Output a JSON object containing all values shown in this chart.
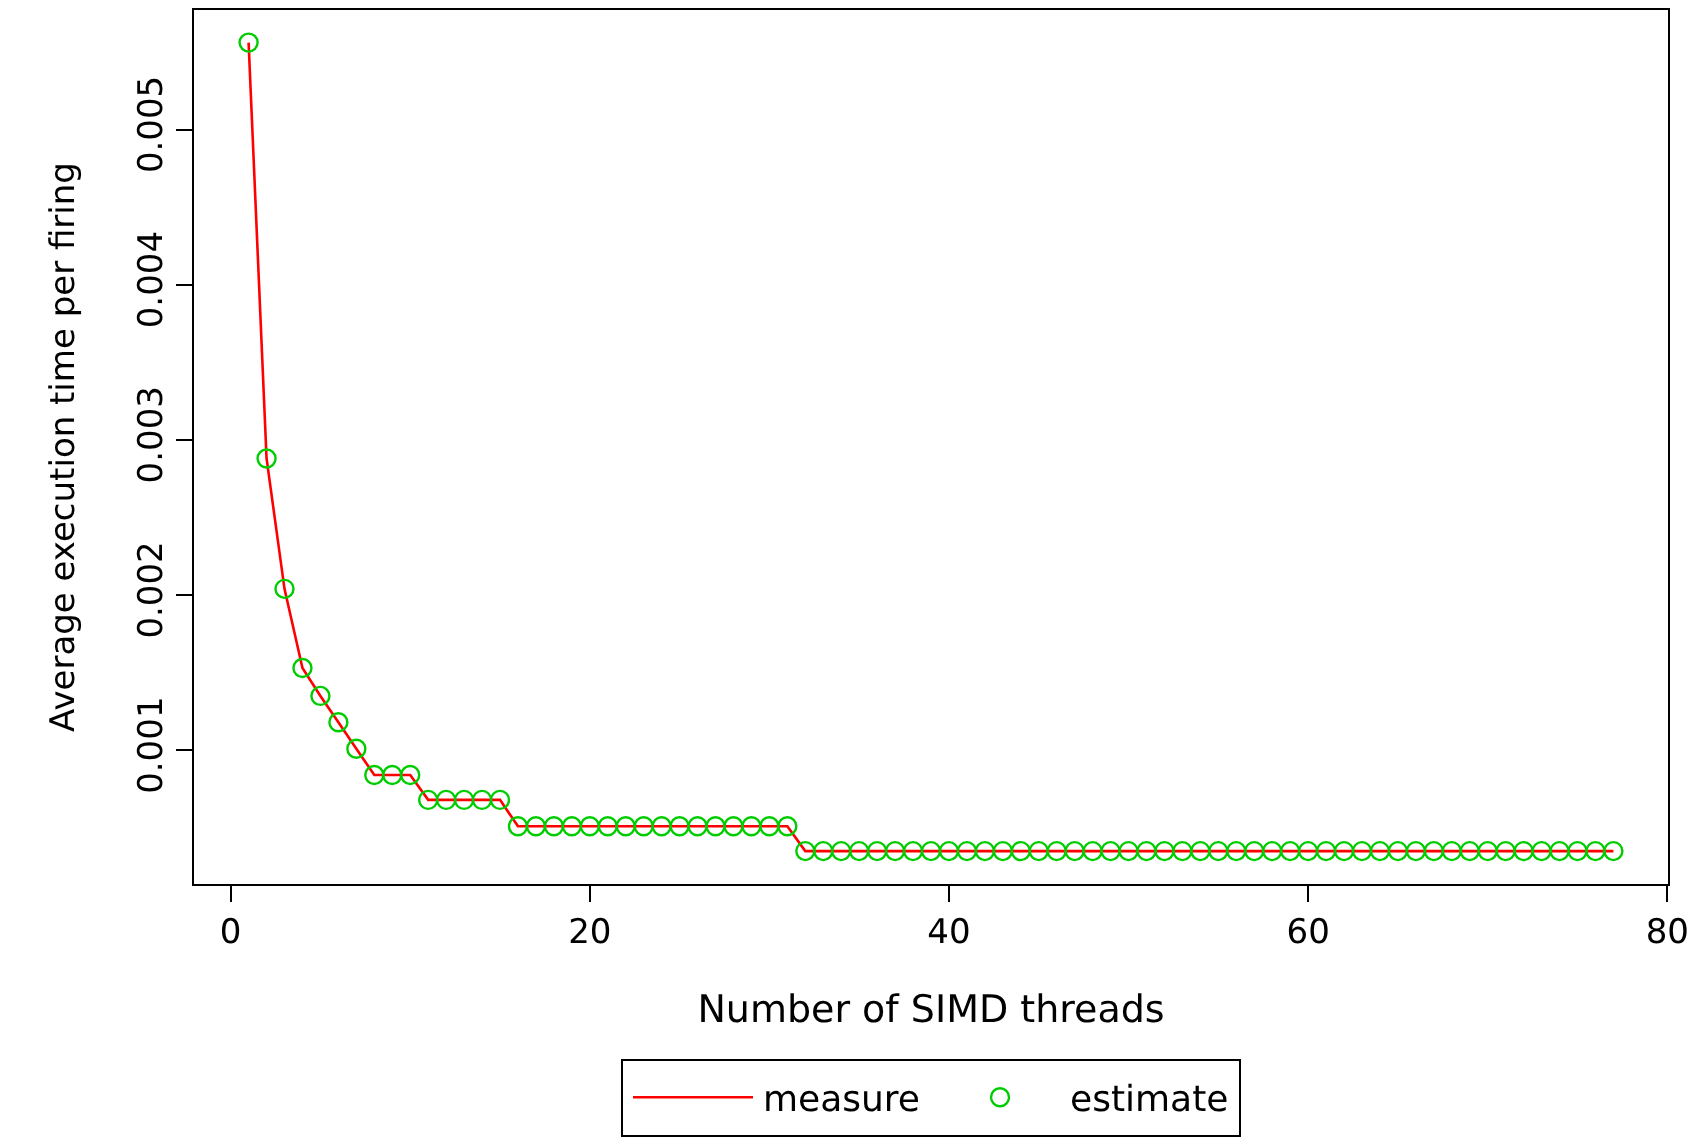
{
  "chart_data": {
    "type": "line",
    "xlabel": "Number of SIMD threads",
    "ylabel": "Average execution time per firing",
    "x": [
      1,
      2,
      3,
      4,
      5,
      6,
      7,
      8,
      9,
      10,
      11,
      12,
      13,
      14,
      15,
      16,
      17,
      18,
      19,
      20,
      21,
      22,
      23,
      24,
      25,
      26,
      27,
      28,
      29,
      30,
      31,
      32,
      33,
      34,
      35,
      36,
      37,
      38,
      39,
      40,
      41,
      42,
      43,
      44,
      45,
      46,
      47,
      48,
      49,
      50,
      51,
      52,
      53,
      54,
      55,
      56,
      57,
      58,
      59,
      60,
      61,
      62,
      63,
      64,
      65,
      66,
      67,
      68,
      69,
      70,
      71,
      72,
      73,
      74,
      75,
      76,
      77
    ],
    "series": [
      {
        "name": "measure",
        "type": "line",
        "color": "#ff0000",
        "marker": "none",
        "line_style": "solid",
        "values": [
          0.00556,
          0.00288,
          0.00204,
          0.00153,
          0.00135,
          0.00118,
          0.00101,
          0.00084,
          0.00084,
          0.00084,
          0.00068,
          0.00068,
          0.00068,
          0.00068,
          0.00068,
          0.00051,
          0.00051,
          0.00051,
          0.00051,
          0.00051,
          0.00051,
          0.00051,
          0.00051,
          0.00051,
          0.00051,
          0.00051,
          0.00051,
          0.00051,
          0.00051,
          0.00051,
          0.00051,
          0.00035,
          0.00035,
          0.00035,
          0.00035,
          0.00035,
          0.00035,
          0.00035,
          0.00035,
          0.00035,
          0.00035,
          0.00035,
          0.00035,
          0.00035,
          0.00035,
          0.00035,
          0.00035,
          0.00035,
          0.00035,
          0.00035,
          0.00035,
          0.00035,
          0.00035,
          0.00035,
          0.00035,
          0.00035,
          0.00035,
          0.00035,
          0.00035,
          0.00035,
          0.00035,
          0.00035,
          0.00035,
          0.00035,
          0.00035,
          0.00035,
          0.00035,
          0.00035,
          0.00035,
          0.00035,
          0.00035,
          0.00035,
          0.00035,
          0.00035,
          0.00035,
          0.00035,
          0.00035
        ]
      },
      {
        "name": "estimate",
        "type": "scatter",
        "color": "#00cc00",
        "marker": "circle",
        "values": [
          0.00556,
          0.00288,
          0.00204,
          0.00153,
          0.00135,
          0.00118,
          0.00101,
          0.00084,
          0.00084,
          0.00084,
          0.00068,
          0.00068,
          0.00068,
          0.00068,
          0.00068,
          0.00051,
          0.00051,
          0.00051,
          0.00051,
          0.00051,
          0.00051,
          0.00051,
          0.00051,
          0.00051,
          0.00051,
          0.00051,
          0.00051,
          0.00051,
          0.00051,
          0.00051,
          0.00051,
          0.00035,
          0.00035,
          0.00035,
          0.00035,
          0.00035,
          0.00035,
          0.00035,
          0.00035,
          0.00035,
          0.00035,
          0.00035,
          0.00035,
          0.00035,
          0.00035,
          0.00035,
          0.00035,
          0.00035,
          0.00035,
          0.00035,
          0.00035,
          0.00035,
          0.00035,
          0.00035,
          0.00035,
          0.00035,
          0.00035,
          0.00035,
          0.00035,
          0.00035,
          0.00035,
          0.00035,
          0.00035,
          0.00035,
          0.00035,
          0.00035,
          0.00035,
          0.00035,
          0.00035,
          0.00035,
          0.00035,
          0.00035,
          0.00035,
          0.00035,
          0.00035,
          0.00035,
          0.00035
        ]
      }
    ],
    "xlim": [
      -2.04,
      80.04
    ],
    "xticks": [
      0,
      20,
      40,
      60,
      80
    ],
    "ylim": [
      0.000138,
      0.00577
    ],
    "yticks": [
      0.001,
      0.002,
      0.003,
      0.004,
      0.005
    ],
    "legend": "bottom"
  }
}
